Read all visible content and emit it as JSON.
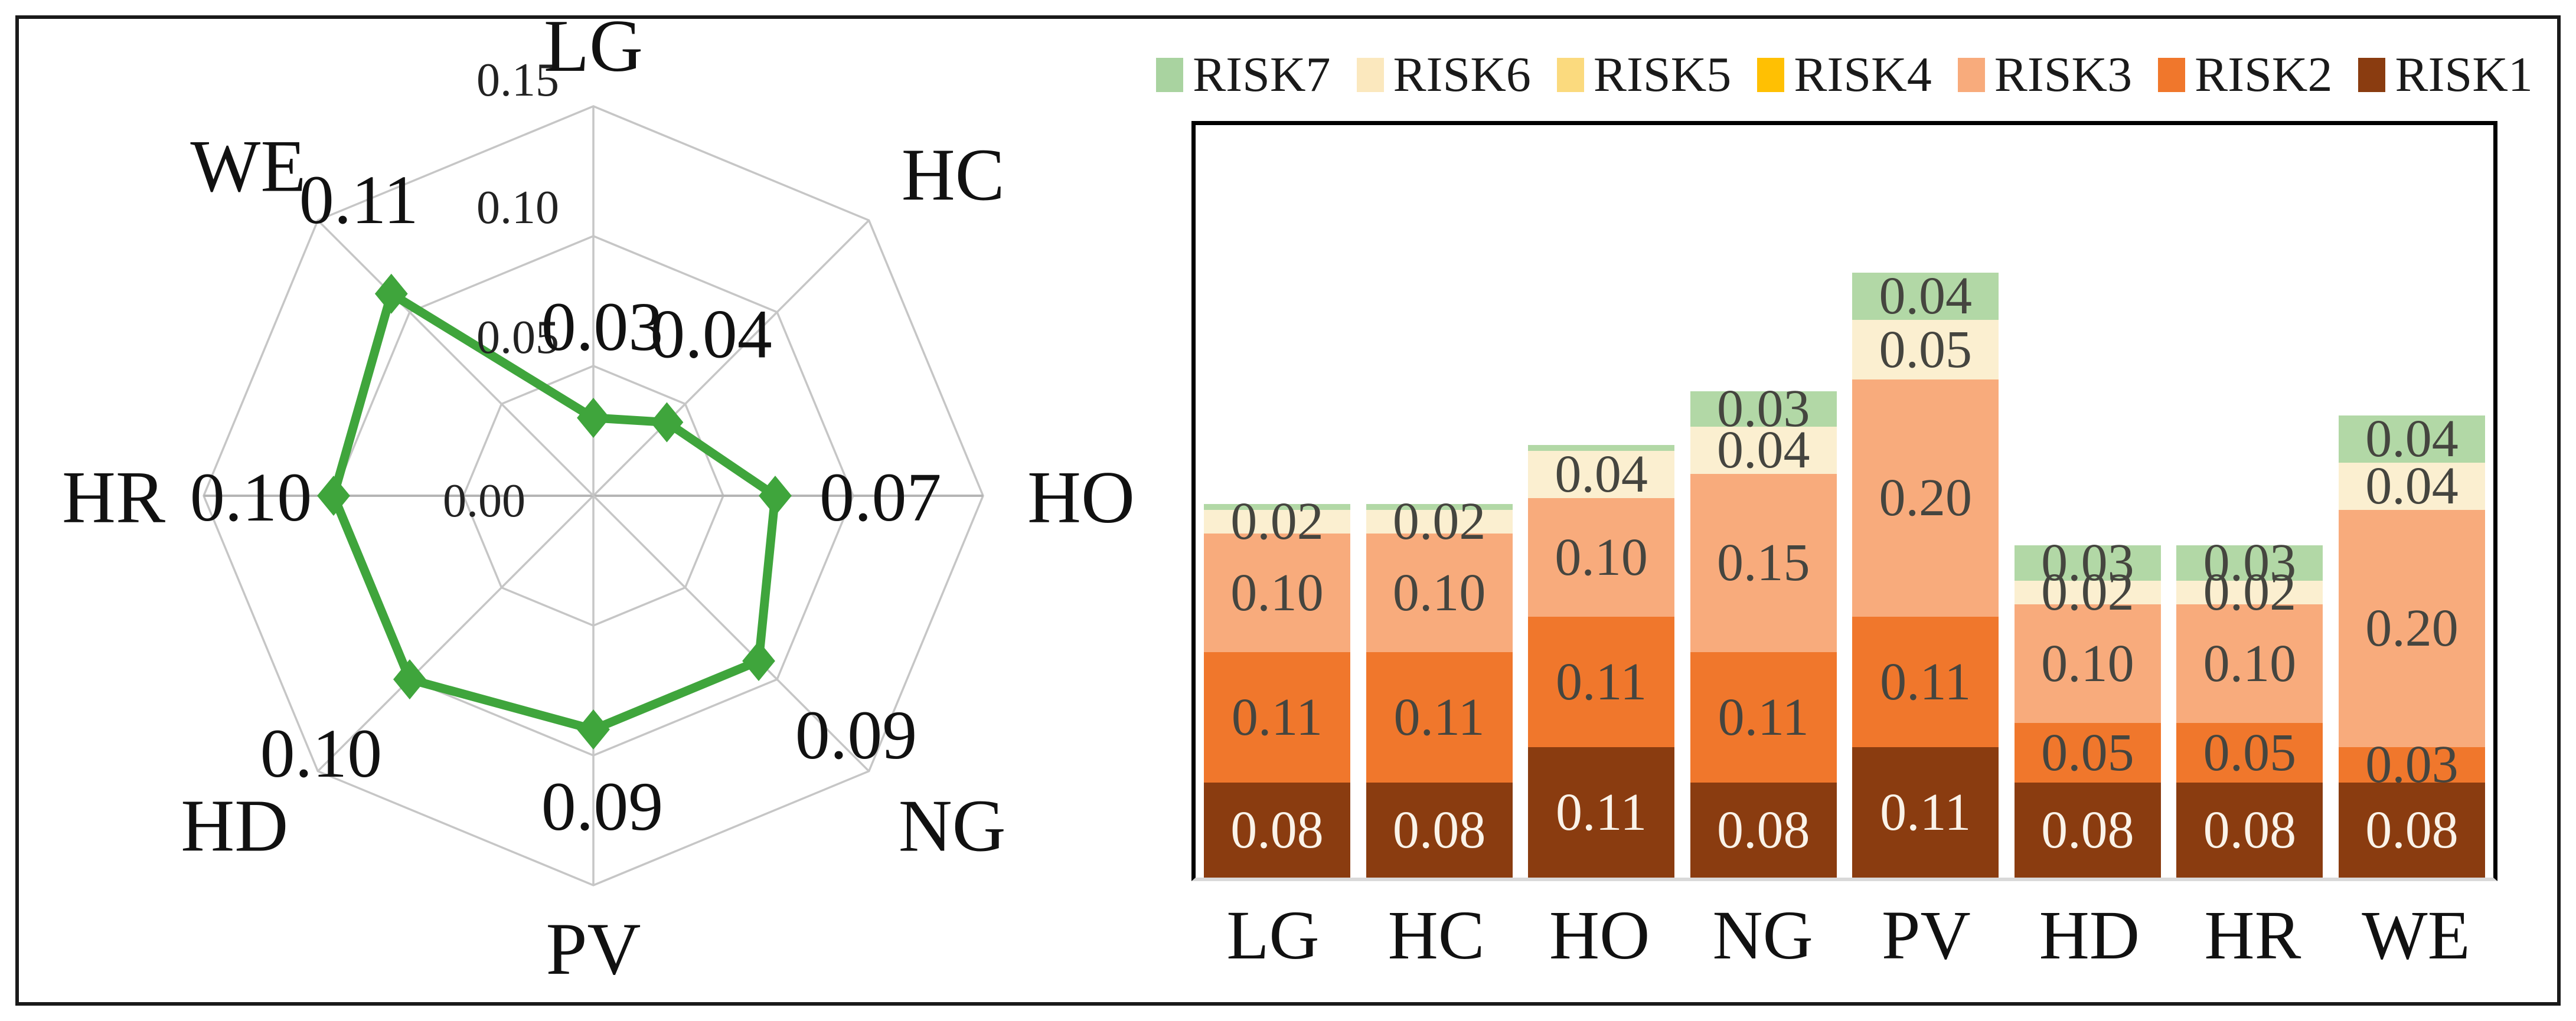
{
  "legend": {
    "items": [
      {
        "label": "RISK7",
        "color": "#A9D3A0"
      },
      {
        "label": "RISK6",
        "color": "#FBE8BE"
      },
      {
        "label": "RISK5",
        "color": "#FBDA7E"
      },
      {
        "label": "RISK4",
        "color": "#FFC003"
      },
      {
        "label": "RISK3",
        "color": "#F8AB7C"
      },
      {
        "label": "RISK2",
        "color": "#F0772C"
      },
      {
        "label": "RISK1",
        "color": "#8A3C10"
      }
    ]
  },
  "chart_data": [
    {
      "type": "radar",
      "title": "",
      "categories": [
        "LG",
        "HC",
        "HO",
        "NG",
        "PV",
        "HD",
        "HR",
        "WE"
      ],
      "values": [
        0.03,
        0.04,
        0.07,
        0.09,
        0.09,
        0.1,
        0.1,
        0.11
      ],
      "point_labels": [
        "0.03",
        "0.04",
        "0.07",
        "0.09",
        "0.09",
        "0.10",
        "0.10",
        "0.11"
      ],
      "ring_values": [
        0.0,
        0.05,
        0.1,
        0.15
      ],
      "ring_labels": [
        "0.00",
        "0.05",
        "0.10",
        "0.15"
      ],
      "rmax": 0.15,
      "marker": "diamond",
      "line_color": "#3FA53C",
      "grid_color": "#C6C6C6",
      "axis_color": "#B5B5B5",
      "text_color": "#111111",
      "legend_position": "none",
      "grid": true
    },
    {
      "type": "bar",
      "stacked": true,
      "title": "",
      "xlabel": "",
      "ylabel": "",
      "categories": [
        "LG",
        "HC",
        "HO",
        "NG",
        "PV",
        "HD",
        "HR",
        "WE"
      ],
      "series": [
        {
          "name": "RISK1",
          "color": "#8A3C10",
          "label_color": "#FAF3E9",
          "values": [
            0.08,
            0.08,
            0.11,
            0.08,
            0.11,
            0.08,
            0.08,
            0.08
          ]
        },
        {
          "name": "RISK2",
          "color": "#F0772C",
          "label_color": "#45453F",
          "values": [
            0.11,
            0.11,
            0.11,
            0.11,
            0.11,
            0.05,
            0.05,
            0.03
          ]
        },
        {
          "name": "RISK3",
          "color": "#F8AB7C",
          "label_color": "#45453F",
          "values": [
            0.1,
            0.1,
            0.1,
            0.15,
            0.2,
            0.1,
            0.1,
            0.2
          ]
        },
        {
          "name": "RISK4",
          "color": "#FFC003",
          "label_color": "#45453F",
          "values": [
            0,
            0,
            0,
            0,
            0,
            0,
            0,
            0
          ]
        },
        {
          "name": "RISK5",
          "color": "#FBDA7E",
          "label_color": "#45453F",
          "values": [
            0,
            0,
            0,
            0,
            0,
            0,
            0,
            0
          ]
        },
        {
          "name": "RISK6",
          "color": "#FBEFD0",
          "label_color": "#45453F",
          "values": [
            0.02,
            0.02,
            0.04,
            0.04,
            0.05,
            0.02,
            0.02,
            0.04
          ]
        },
        {
          "name": "RISK7",
          "color": "#B2D8A6",
          "label_color": "#45453F",
          "values": [
            0.005,
            0.005,
            0.005,
            0.03,
            0.04,
            0.03,
            0.03,
            0.04
          ]
        }
      ],
      "label_min_value": 0.02,
      "ylim": [
        0,
        0.64
      ],
      "grid": false,
      "legend_position": "top",
      "legend_order": [
        "RISK7",
        "RISK6",
        "RISK5",
        "RISK4",
        "RISK3",
        "RISK2",
        "RISK1"
      ]
    }
  ]
}
